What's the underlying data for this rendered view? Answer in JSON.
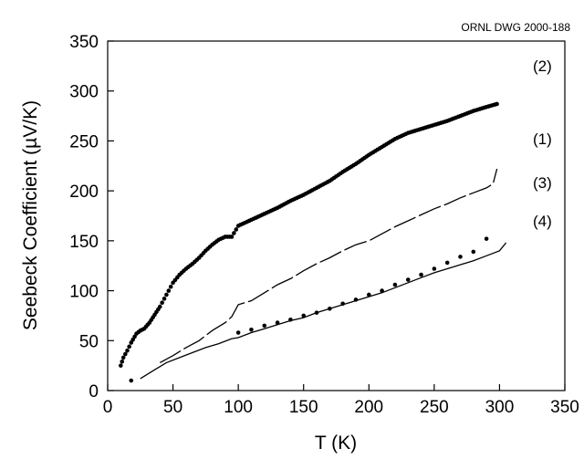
{
  "chart_data": {
    "type": "scatter",
    "drawing_id": "ORNL DWG 2000-188",
    "xlabel": "T (K)",
    "ylabel": "Seebeck Coefficient (µV/K)",
    "xlim": [
      0,
      350
    ],
    "ylim": [
      0,
      350
    ],
    "xticks": [
      0,
      50,
      100,
      150,
      200,
      250,
      300,
      350
    ],
    "yticks": [
      0,
      50,
      100,
      150,
      200,
      250,
      300,
      350
    ],
    "grid": false,
    "series": [
      {
        "name": "(2)",
        "style": "dense-dots",
        "points": [
          [
            10,
            25
          ],
          [
            12,
            33
          ],
          [
            15,
            40
          ],
          [
            18,
            48
          ],
          [
            22,
            57
          ],
          [
            25,
            60
          ],
          [
            28,
            62
          ],
          [
            32,
            68
          ],
          [
            36,
            76
          ],
          [
            40,
            84
          ],
          [
            45,
            96
          ],
          [
            50,
            108
          ],
          [
            55,
            116
          ],
          [
            60,
            122
          ],
          [
            65,
            127
          ],
          [
            70,
            133
          ],
          [
            75,
            140
          ],
          [
            80,
            146
          ],
          [
            85,
            151
          ],
          [
            90,
            154
          ],
          [
            95,
            154
          ],
          [
            100,
            165
          ],
          [
            110,
            171
          ],
          [
            120,
            177
          ],
          [
            130,
            183
          ],
          [
            140,
            190
          ],
          [
            150,
            196
          ],
          [
            160,
            203
          ],
          [
            170,
            210
          ],
          [
            180,
            219
          ],
          [
            190,
            227
          ],
          [
            200,
            236
          ],
          [
            210,
            244
          ],
          [
            220,
            252
          ],
          [
            230,
            258
          ],
          [
            240,
            262
          ],
          [
            250,
            266
          ],
          [
            260,
            270
          ],
          [
            270,
            275
          ],
          [
            280,
            280
          ],
          [
            290,
            284
          ],
          [
            298,
            287
          ]
        ]
      },
      {
        "name": "(1)",
        "style": "dashed-line",
        "points": [
          [
            40,
            28
          ],
          [
            50,
            35
          ],
          [
            60,
            43
          ],
          [
            70,
            50
          ],
          [
            80,
            60
          ],
          [
            90,
            68
          ],
          [
            95,
            74
          ],
          [
            100,
            86
          ],
          [
            110,
            90
          ],
          [
            120,
            98
          ],
          [
            130,
            106
          ],
          [
            140,
            112
          ],
          [
            150,
            120
          ],
          [
            160,
            127
          ],
          [
            170,
            133
          ],
          [
            180,
            140
          ],
          [
            190,
            146
          ],
          [
            200,
            150
          ],
          [
            210,
            157
          ],
          [
            220,
            164
          ],
          [
            230,
            170
          ],
          [
            240,
            176
          ],
          [
            250,
            182
          ],
          [
            260,
            187
          ],
          [
            270,
            193
          ],
          [
            280,
            198
          ],
          [
            290,
            203
          ],
          [
            295,
            207
          ],
          [
            298,
            222
          ]
        ]
      },
      {
        "name": "(3)",
        "style": "sparse-dots",
        "points": [
          [
            18,
            10
          ],
          [
            100,
            58
          ],
          [
            110,
            61
          ],
          [
            120,
            65
          ],
          [
            130,
            68
          ],
          [
            140,
            71
          ],
          [
            150,
            75
          ],
          [
            160,
            78
          ],
          [
            170,
            82
          ],
          [
            180,
            87
          ],
          [
            190,
            91
          ],
          [
            200,
            96
          ],
          [
            210,
            100
          ],
          [
            220,
            106
          ],
          [
            230,
            111
          ],
          [
            240,
            116
          ],
          [
            250,
            122
          ],
          [
            260,
            128
          ],
          [
            270,
            134
          ],
          [
            280,
            139
          ],
          [
            290,
            152
          ]
        ]
      },
      {
        "name": "(4)",
        "style": "solid-line",
        "points": [
          [
            25,
            12
          ],
          [
            35,
            20
          ],
          [
            45,
            28
          ],
          [
            55,
            33
          ],
          [
            65,
            38
          ],
          [
            75,
            43
          ],
          [
            85,
            47
          ],
          [
            95,
            52
          ],
          [
            100,
            53
          ],
          [
            110,
            58
          ],
          [
            120,
            62
          ],
          [
            130,
            66
          ],
          [
            140,
            70
          ],
          [
            150,
            73
          ],
          [
            160,
            78
          ],
          [
            170,
            82
          ],
          [
            180,
            86
          ],
          [
            190,
            90
          ],
          [
            200,
            94
          ],
          [
            210,
            98
          ],
          [
            220,
            103
          ],
          [
            230,
            108
          ],
          [
            240,
            113
          ],
          [
            250,
            118
          ],
          [
            260,
            122
          ],
          [
            270,
            126
          ],
          [
            280,
            130
          ],
          [
            290,
            135
          ],
          [
            300,
            140
          ],
          [
            305,
            148
          ]
        ]
      }
    ]
  }
}
